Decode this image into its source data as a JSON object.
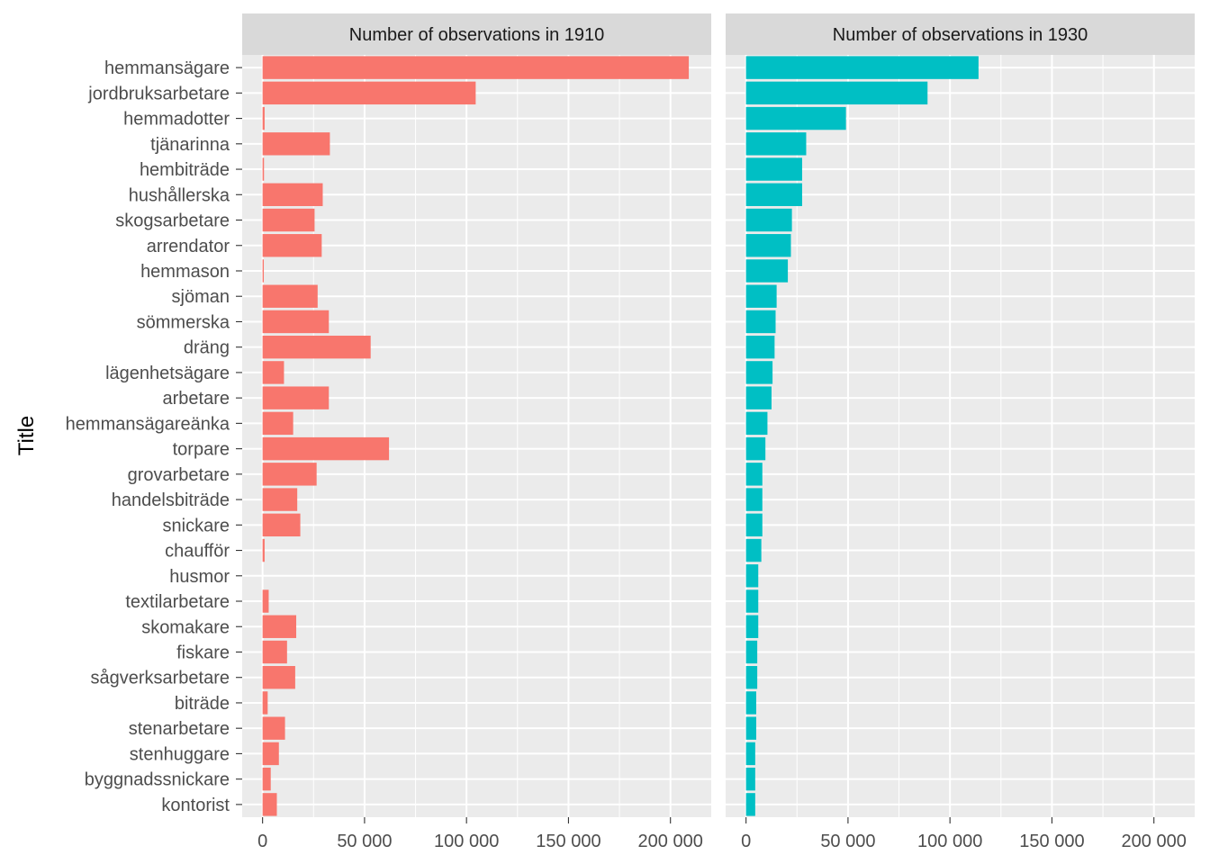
{
  "chart_data": {
    "type": "bar",
    "orientation": "horizontal",
    "ylabel": "Title",
    "xlabel": "",
    "xlim": [
      -10000,
      220000
    ],
    "xticks": [
      0,
      50000,
      100000,
      150000,
      200000
    ],
    "xtick_labels": [
      "0",
      "50 000",
      "100 000",
      "150 000",
      "200 000"
    ],
    "grid": true,
    "categories": [
      "hemmansägare",
      "jordbruksarbetare",
      "hemmadotter",
      "tjänarinna",
      "hembiträde",
      "hushållerska",
      "skogsarbetare",
      "arrendator",
      "hemmason",
      "sjöman",
      "sömmerska",
      "dräng",
      "lägenhetsägare",
      "arbetare",
      "hemmansägareänka",
      "torpare",
      "grovarbetare",
      "handelsbiträde",
      "snickare",
      "chaufför",
      "husmor",
      "textilarbetare",
      "skomakare",
      "fiskare",
      "sågverksarbetare",
      "biträde",
      "stenarbetare",
      "stenhuggare",
      "byggnadssnickare",
      "kontorist"
    ],
    "panels": [
      {
        "title": "Number of observations in 1910",
        "color": "#F8766D",
        "values": [
          209000,
          104500,
          1000,
          33000,
          700,
          29500,
          25500,
          29000,
          600,
          27000,
          32500,
          53000,
          10500,
          32500,
          15000,
          62000,
          26500,
          17000,
          18500,
          1000,
          0,
          3000,
          16500,
          12000,
          16000,
          2500,
          11000,
          8000,
          4000,
          7000
        ]
      },
      {
        "title": "Number of observations in 1930",
        "color": "#00BFC4",
        "values": [
          114000,
          89000,
          49000,
          29500,
          27500,
          27500,
          22500,
          22000,
          20500,
          15000,
          14500,
          14000,
          13000,
          12500,
          10500,
          9500,
          8000,
          8000,
          8000,
          7500,
          6000,
          6000,
          6000,
          5500,
          5500,
          5000,
          5000,
          4500,
          4500,
          4500
        ]
      }
    ]
  }
}
